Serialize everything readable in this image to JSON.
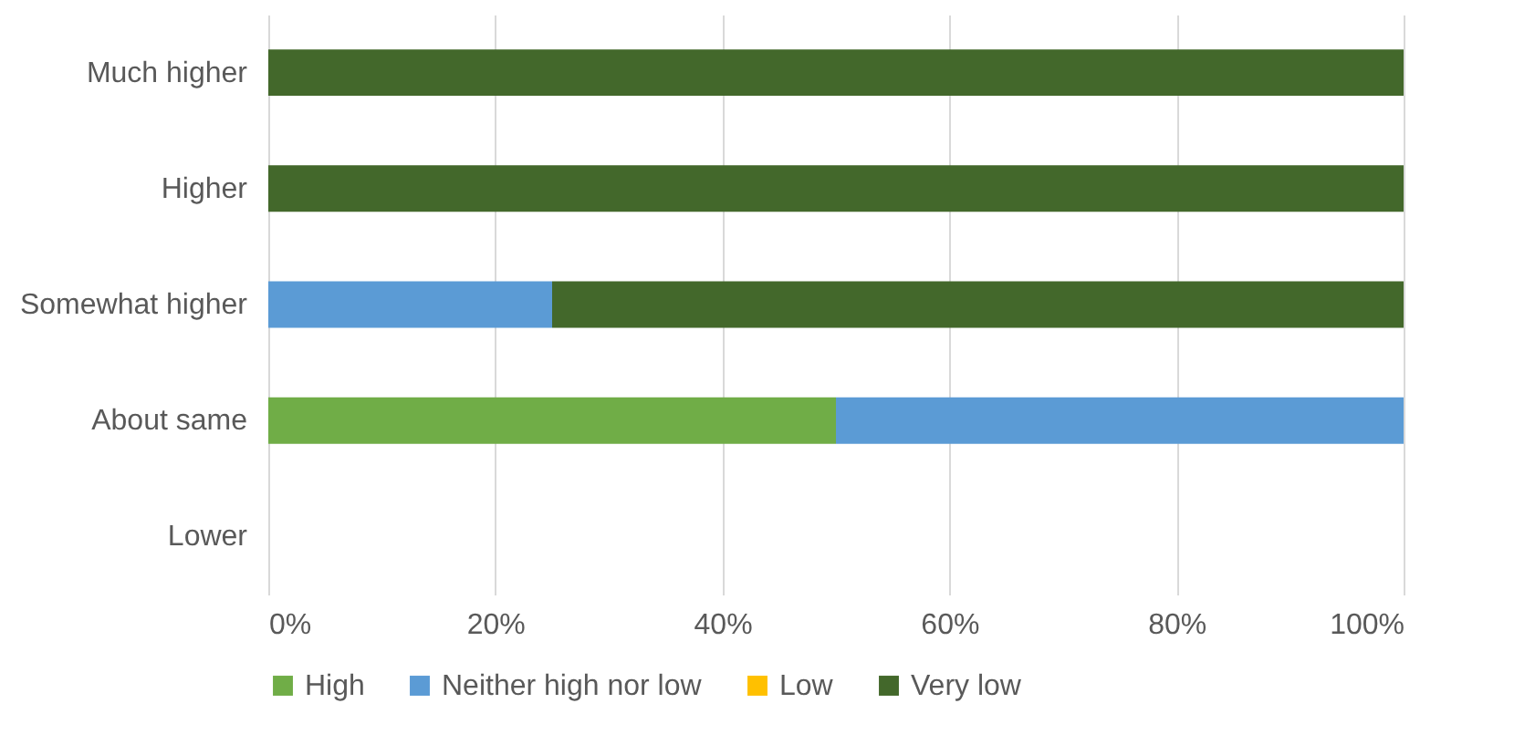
{
  "chart_data": {
    "type": "bar",
    "orientation": "horizontal",
    "stacked": true,
    "categories": [
      "Much higher",
      "Higher",
      "Somewhat higher",
      "About same",
      "Lower"
    ],
    "series": [
      {
        "name": "High",
        "color": "#70ad47",
        "values": [
          0,
          0,
          0,
          50,
          0
        ]
      },
      {
        "name": "Neither high nor low",
        "color": "#5b9bd5",
        "values": [
          0,
          0,
          25,
          50,
          0
        ]
      },
      {
        "name": "Low",
        "color": "#ffc000",
        "values": [
          0,
          0,
          0,
          0,
          0
        ]
      },
      {
        "name": "Very low",
        "color": "#43682b",
        "values": [
          100,
          100,
          75,
          0,
          0
        ]
      }
    ],
    "xlim": [
      0,
      100
    ],
    "xticks": [
      {
        "value": 0,
        "label": "0%"
      },
      {
        "value": 20,
        "label": "20%"
      },
      {
        "value": 40,
        "label": "40%"
      },
      {
        "value": 60,
        "label": "60%"
      },
      {
        "value": 80,
        "label": "80%"
      },
      {
        "value": 100,
        "label": "100%"
      }
    ],
    "grid": "x",
    "legend": "bottom"
  }
}
